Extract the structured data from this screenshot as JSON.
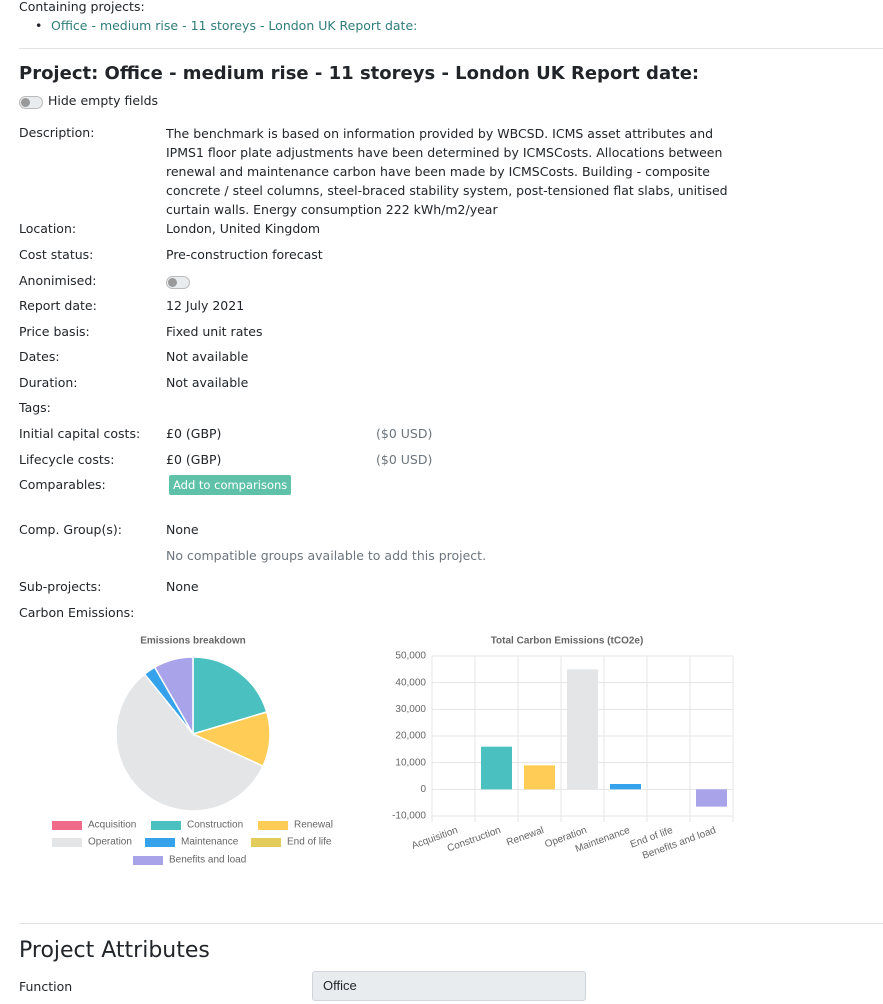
{
  "containing": {
    "label": "Containing projects:",
    "items": [
      "Office - medium rise - 11 storeys - London UK Report date:"
    ]
  },
  "project": {
    "title": "Project: Office - medium rise - 11 storeys - London UK Report date:",
    "toggle_label": "Hide empty fields",
    "fields": [
      {
        "label": "Description:",
        "value": "The benchmark is based on information provided by WBCSD. ICMS asset attributes and IPMS1 floor plate adjustments have been determined by ICMSCosts. Allocations between renewal and maintenance carbon have been made by ICMSCosts. Building - composite concrete / steel columns, steel-braced stability system, post-tensioned flat slabs, unitised curtain walls. Energy consumption 222 kWh/m2/year"
      },
      {
        "label": "Location:",
        "value": "London, United Kingdom"
      },
      {
        "label": "Cost status:",
        "value": "Pre-construction forecast"
      },
      {
        "label": "Anonimised:",
        "toggle": false
      },
      {
        "label": "Report date:",
        "value": "12 July 2021"
      },
      {
        "label": "Price basis:",
        "value": "Fixed unit rates"
      },
      {
        "label": "Dates:",
        "value": "Not available"
      },
      {
        "label": "Duration:",
        "value": "Not available"
      },
      {
        "label": "Tags:"
      },
      {
        "label": "Initial capital costs:",
        "value": "£0 (GBP)",
        "extra": "($0 USD)"
      },
      {
        "label": "Lifecycle costs:",
        "value": "£0 (GBP)",
        "extra": "($0 USD)"
      },
      {
        "label": "Comparables:",
        "button": "Add to comparisons"
      },
      {
        "label": "Comp. Group(s):",
        "value": "None",
        "note": "No compatible groups available to add this project."
      },
      {
        "label": "Sub-projects:",
        "value": "None"
      },
      {
        "label": "Carbon Emissions:"
      }
    ]
  },
  "chart_data": [
    {
      "type": "pie",
      "title": "Emissions breakdown",
      "categories": [
        "Acquisition",
        "Construction",
        "Renewal",
        "Operation",
        "Maintenance",
        "End of life",
        "Benefits and load"
      ],
      "values": [
        0,
        16000,
        9000,
        45000,
        2000,
        0,
        6500
      ],
      "colors": [
        "#f06a89",
        "#4bc0c0",
        "#ffcd56",
        "#e4e5e7",
        "#36a2eb",
        "#e3cb5c",
        "#a9a4ea"
      ]
    },
    {
      "type": "bar",
      "title": "Total Carbon Emissions (tCO2e)",
      "categories": [
        "Acquisition",
        "Construction",
        "Renewal",
        "Operation",
        "Maintenance",
        "End of life",
        "Benefits and load"
      ],
      "values": [
        0,
        16000,
        9000,
        45000,
        2000,
        0,
        -6500
      ],
      "colors": [
        "#f06a89",
        "#4bc0c0",
        "#ffcd56",
        "#e4e5e7",
        "#36a2eb",
        "#e3cb5c",
        "#a9a4ea"
      ],
      "ylim": [
        -10000,
        50000
      ],
      "yticks": [
        {
          "value": -10000,
          "label": "-10,000"
        },
        0,
        {
          "value": 10000,
          "label": "10,000"
        },
        {
          "value": 20000,
          "label": "20,000"
        },
        {
          "value": 30000,
          "label": "30,000"
        },
        {
          "value": 40000,
          "label": "40,000"
        },
        {
          "value": 50000,
          "label": "50,000"
        }
      ],
      "grid": true
    }
  ],
  "attributes": {
    "title": "Project Attributes",
    "fields": [
      {
        "label": "Function",
        "value": "Office"
      }
    ]
  }
}
